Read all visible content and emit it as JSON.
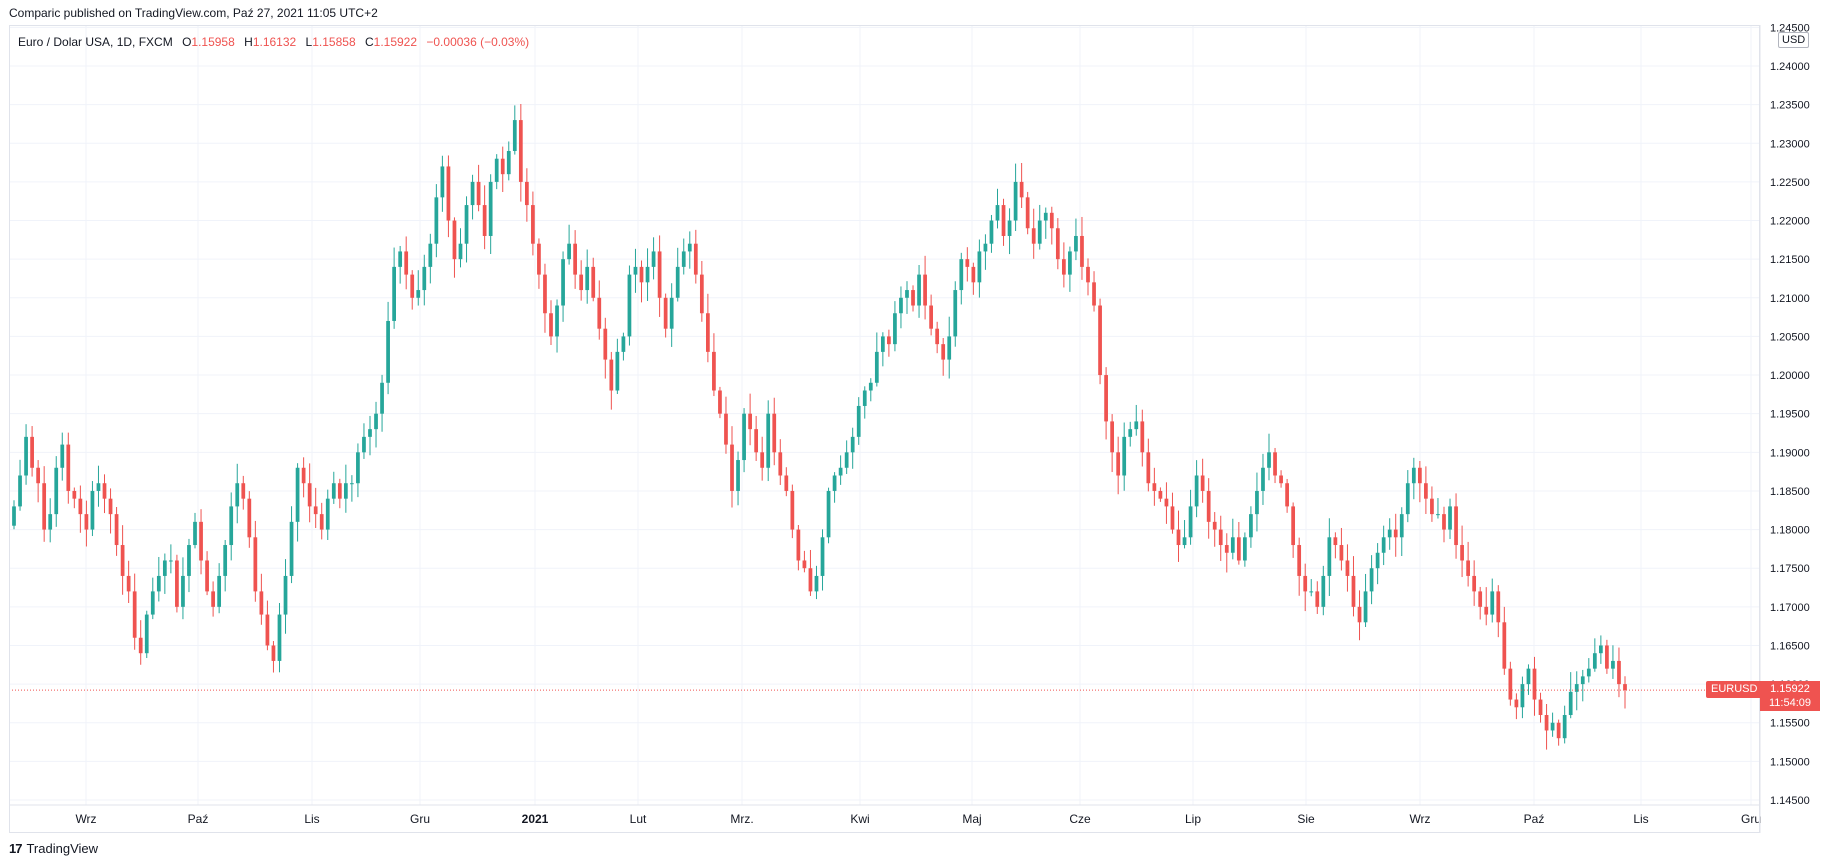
{
  "header": {
    "published": "Comparic published on TradingView.com, Paź 27, 2021 11:05 UTC+2"
  },
  "legend": {
    "symbol": "Euro / Dolar USA, 1D, FXCM",
    "o_label": "O",
    "o": "1.15958",
    "h_label": "H",
    "h": "1.16132",
    "l_label": "L",
    "l": "1.15858",
    "c_label": "C",
    "c": "1.15922",
    "change": "−0.00036 (−0.03%)"
  },
  "price_axis": {
    "currency": "USD",
    "symbol_tag": "EURUSD",
    "last_price": "1.15922",
    "countdown": "11:54:09"
  },
  "footer": {
    "brand": "TradingView",
    "logo_glyph": "17"
  },
  "colors": {
    "up": "#26a69a",
    "down": "#ef5350",
    "grid": "#f0f3fa",
    "text": "#131722"
  },
  "chart_data": {
    "type": "candlestick",
    "title": "Euro / Dolar USA, 1D, FXCM",
    "ylim": [
      1.143,
      1.245
    ],
    "y_ticks": [
      "1.14500",
      "1.15000",
      "1.15500",
      "1.16000",
      "1.16500",
      "1.17000",
      "1.17500",
      "1.18000",
      "1.18500",
      "1.19000",
      "1.19500",
      "1.20000",
      "1.20500",
      "1.21000",
      "1.21500",
      "1.22000",
      "1.22500",
      "1.23000",
      "1.23500",
      "1.24000",
      "1.24500"
    ],
    "x_ticks": [
      "Wrz",
      "Paź",
      "Lis",
      "Gru",
      "2021",
      "Lut",
      "Mrz.",
      "Kwi",
      "Maj",
      "Cze",
      "Lip",
      "Sie",
      "Wrz",
      "Paź",
      "Lis",
      "Gru"
    ],
    "last_price": 1.15922,
    "close_series": [
      1.183,
      1.187,
      1.192,
      1.188,
      1.186,
      1.18,
      1.182,
      1.188,
      1.191,
      1.185,
      1.184,
      1.182,
      1.18,
      1.185,
      1.186,
      1.184,
      1.182,
      1.178,
      1.174,
      1.172,
      1.166,
      1.164,
      1.169,
      1.172,
      1.174,
      1.176,
      1.176,
      1.17,
      1.174,
      1.178,
      1.181,
      1.176,
      1.172,
      1.17,
      1.174,
      1.178,
      1.183,
      1.186,
      1.184,
      1.179,
      1.172,
      1.169,
      1.165,
      1.163,
      1.169,
      1.174,
      1.181,
      1.188,
      1.186,
      1.183,
      1.182,
      1.18,
      1.184,
      1.186,
      1.184,
      1.186,
      1.186,
      1.19,
      1.192,
      1.193,
      1.195,
      1.199,
      1.207,
      1.214,
      1.216,
      1.213,
      1.21,
      1.211,
      1.214,
      1.217,
      1.223,
      1.227,
      1.22,
      1.215,
      1.217,
      1.222,
      1.225,
      1.222,
      1.218,
      1.225,
      1.228,
      1.226,
      1.229,
      1.233,
      1.225,
      1.222,
      1.217,
      1.213,
      1.208,
      1.205,
      1.209,
      1.215,
      1.217,
      1.213,
      1.211,
      1.214,
      1.21,
      1.206,
      1.202,
      1.198,
      1.203,
      1.205,
      1.213,
      1.214,
      1.212,
      1.214,
      1.216,
      1.21,
      1.206,
      1.21,
      1.214,
      1.216,
      1.217,
      1.213,
      1.208,
      1.203,
      1.198,
      1.195,
      1.191,
      1.185,
      1.189,
      1.195,
      1.193,
      1.19,
      1.188,
      1.195,
      1.19,
      1.187,
      1.185,
      1.18,
      1.176,
      1.175,
      1.172,
      1.174,
      1.179,
      1.185,
      1.187,
      1.188,
      1.19,
      1.192,
      1.196,
      1.198,
      1.199,
      1.203,
      1.205,
      1.204,
      1.208,
      1.21,
      1.211,
      1.209,
      1.213,
      1.209,
      1.206,
      1.204,
      1.202,
      1.205,
      1.211,
      1.215,
      1.214,
      1.212,
      1.216,
      1.217,
      1.22,
      1.222,
      1.218,
      1.22,
      1.225,
      1.223,
      1.219,
      1.217,
      1.22,
      1.221,
      1.219,
      1.215,
      1.213,
      1.216,
      1.218,
      1.214,
      1.212,
      1.209,
      1.2,
      1.194,
      1.19,
      1.187,
      1.192,
      1.193,
      1.194,
      1.19,
      1.186,
      1.185,
      1.184,
      1.183,
      1.18,
      1.178,
      1.179,
      1.183,
      1.187,
      1.185,
      1.181,
      1.18,
      1.178,
      1.177,
      1.179,
      1.176,
      1.179,
      1.182,
      1.185,
      1.188,
      1.19,
      1.187,
      1.186,
      1.183,
      1.178,
      1.174,
      1.172,
      1.172,
      1.17,
      1.174,
      1.179,
      1.178,
      1.176,
      1.174,
      1.17,
      1.168,
      1.172,
      1.175,
      1.177,
      1.179,
      1.18,
      1.179,
      1.182,
      1.186,
      1.188,
      1.186,
      1.184,
      1.182,
      1.182,
      1.18,
      1.183,
      1.178,
      1.176,
      1.174,
      1.172,
      1.17,
      1.169,
      1.172,
      1.168,
      1.162,
      1.158,
      1.157,
      1.16,
      1.162,
      1.158,
      1.156,
      1.154,
      1.155,
      1.153,
      1.156,
      1.159,
      1.16,
      1.161,
      1.162,
      1.164,
      1.165,
      1.162,
      1.163,
      1.16,
      1.15922
    ]
  }
}
